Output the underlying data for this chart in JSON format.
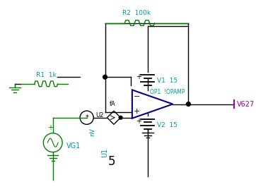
{
  "background_color": "#ffffff",
  "wire_color": "#000000",
  "component_color": "#008000",
  "opamp_color": "#00008B",
  "label_color_cyan": "#009999",
  "label_color_magenta": "#990099",
  "fig_width": 3.62,
  "fig_height": 2.75,
  "dpi": 100,
  "r1_label": "R1  1k",
  "r2_label": "R2  100k",
  "v1_label": "V1  15",
  "v2_label": "V2  15",
  "op1_label": "OP1  !OPAMP",
  "vg1_label": "VG1",
  "v627_label": "V627",
  "u1_label": "U1",
  "u2_label": "U2",
  "nv_label": "nV",
  "fa_label": "fA",
  "num5_label": "5"
}
